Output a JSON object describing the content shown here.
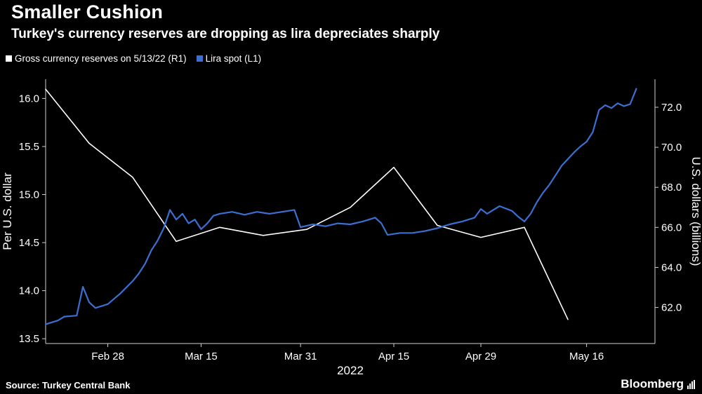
{
  "header": {
    "title": "Smaller Cushion",
    "subtitle": "Turkey's currency reserves are dropping as lira depreciates sharply"
  },
  "footer": {
    "source": "Source: Turkey Central Bank",
    "brand": "Bloomberg"
  },
  "chart_data": {
    "type": "line",
    "title": "Smaller Cushion",
    "subtitle": "Turkey's currency reserves are dropping as lira depreciates sharply",
    "background_color": "#000000",
    "x_axis": {
      "label": "2022",
      "range": [
        0,
        98
      ],
      "ticks": [
        {
          "x": 10,
          "label": "Feb 28"
        },
        {
          "x": 25,
          "label": "Mar 15"
        },
        {
          "x": 41,
          "label": "Mar 31"
        },
        {
          "x": 56,
          "label": "Apr 15"
        },
        {
          "x": 70,
          "label": "Apr 29"
        },
        {
          "x": 87,
          "label": "May 16"
        }
      ]
    },
    "left_axis": {
      "label": "Per U.S. dollar",
      "range": [
        13.45,
        16.2
      ],
      "ticks": [
        13.5,
        14.0,
        14.5,
        15.0,
        15.5,
        16.0
      ]
    },
    "right_axis": {
      "label": "U.S. dollars (billions)",
      "range": [
        60.2,
        73.4
      ],
      "ticks": [
        62.0,
        64.0,
        66.0,
        68.0,
        70.0,
        72.0
      ]
    },
    "series": [
      {
        "name": "Gross currency reserves on 5/13/22 (R1)",
        "axis": "right",
        "color": "#ffffff",
        "width": 1.6,
        "points": [
          [
            0,
            72.9
          ],
          [
            7,
            70.2
          ],
          [
            14,
            68.5
          ],
          [
            21,
            65.3
          ],
          [
            28,
            66.0
          ],
          [
            35,
            65.6
          ],
          [
            42,
            65.9
          ],
          [
            49,
            67.0
          ],
          [
            56,
            69.0
          ],
          [
            63,
            66.1
          ],
          [
            70,
            65.5
          ],
          [
            77,
            66.0
          ],
          [
            84,
            61.4
          ]
        ]
      },
      {
        "name": "Lira spot (L1)",
        "axis": "left",
        "color": "#3b6fd1",
        "width": 2.2,
        "points": [
          [
            0,
            13.65
          ],
          [
            2,
            13.69
          ],
          [
            3,
            13.73
          ],
          [
            5,
            13.74
          ],
          [
            6,
            14.04
          ],
          [
            7,
            13.88
          ],
          [
            8,
            13.82
          ],
          [
            10,
            13.86
          ],
          [
            12,
            13.97
          ],
          [
            14,
            14.1
          ],
          [
            15,
            14.18
          ],
          [
            16,
            14.28
          ],
          [
            17,
            14.42
          ],
          [
            18,
            14.52
          ],
          [
            19,
            14.65
          ],
          [
            20,
            14.84
          ],
          [
            21,
            14.74
          ],
          [
            22,
            14.8
          ],
          [
            23,
            14.7
          ],
          [
            24,
            14.74
          ],
          [
            25,
            14.64
          ],
          [
            26,
            14.7
          ],
          [
            27,
            14.78
          ],
          [
            28,
            14.8
          ],
          [
            30,
            14.82
          ],
          [
            32,
            14.79
          ],
          [
            34,
            14.82
          ],
          [
            36,
            14.8
          ],
          [
            38,
            14.82
          ],
          [
            40,
            14.84
          ],
          [
            41,
            14.66
          ],
          [
            43,
            14.69
          ],
          [
            45,
            14.67
          ],
          [
            47,
            14.7
          ],
          [
            49,
            14.69
          ],
          [
            51,
            14.72
          ],
          [
            53,
            14.76
          ],
          [
            54,
            14.7
          ],
          [
            55,
            14.58
          ],
          [
            57,
            14.6
          ],
          [
            59,
            14.6
          ],
          [
            61,
            14.62
          ],
          [
            63,
            14.65
          ],
          [
            65,
            14.69
          ],
          [
            67,
            14.72
          ],
          [
            69,
            14.76
          ],
          [
            70,
            14.85
          ],
          [
            71,
            14.8
          ],
          [
            72,
            14.84
          ],
          [
            73,
            14.88
          ],
          [
            75,
            14.83
          ],
          [
            76,
            14.77
          ],
          [
            77,
            14.72
          ],
          [
            78,
            14.8
          ],
          [
            79,
            14.92
          ],
          [
            80,
            15.02
          ],
          [
            81,
            15.1
          ],
          [
            82,
            15.2
          ],
          [
            83,
            15.3
          ],
          [
            84,
            15.37
          ],
          [
            85,
            15.44
          ],
          [
            86,
            15.5
          ],
          [
            87,
            15.55
          ],
          [
            88,
            15.65
          ],
          [
            89,
            15.88
          ],
          [
            90,
            15.93
          ],
          [
            91,
            15.9
          ],
          [
            92,
            15.95
          ],
          [
            93,
            15.92
          ],
          [
            94,
            15.94
          ],
          [
            95,
            16.1
          ]
        ]
      }
    ],
    "legend_position": "top-left",
    "grid": false
  }
}
